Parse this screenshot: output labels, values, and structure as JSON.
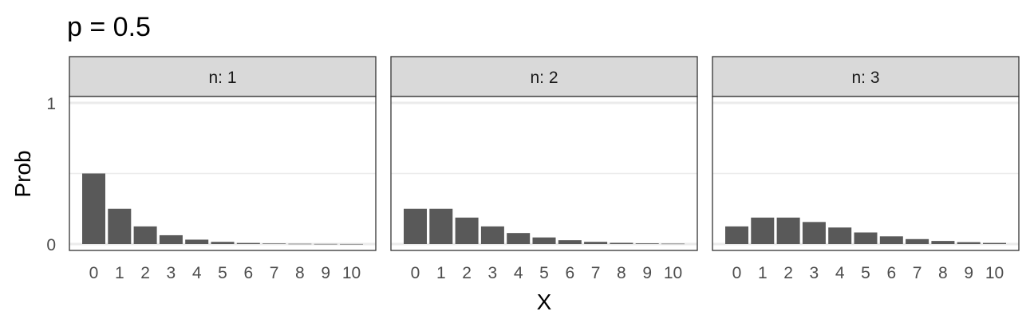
{
  "title": "p = 0.5",
  "chart_data": {
    "type": "bar",
    "title": "p = 0.5",
    "xlabel": "X",
    "ylabel": "Prob",
    "categories": [
      "0",
      "1",
      "2",
      "3",
      "4",
      "5",
      "6",
      "7",
      "8",
      "9",
      "10"
    ],
    "ylim": [
      0,
      1
    ],
    "y_ticks": [
      "0",
      "1"
    ],
    "grid": true,
    "facets": [
      {
        "label": "n: 1",
        "values": [
          0.5,
          0.25,
          0.125,
          0.0625,
          0.03125,
          0.015625,
          0.0078125,
          0.00390625,
          0.001953125,
          0.0009765625,
          0.00048828125
        ]
      },
      {
        "label": "n: 2",
        "values": [
          0.25,
          0.25,
          0.1875,
          0.125,
          0.078125,
          0.046875,
          0.02734375,
          0.015625,
          0.0087890625,
          0.0048828125,
          0.002685546875
        ]
      },
      {
        "label": "n: 3",
        "values": [
          0.125,
          0.1875,
          0.1875,
          0.15625,
          0.1171875,
          0.08203125,
          0.0546875,
          0.03515625,
          0.02197265625,
          0.013427734375,
          0.008056640625
        ]
      }
    ],
    "colors": {
      "bar": "#595959",
      "strip_fill": "#d9d9d9",
      "panel_border": "#333333",
      "grid": "#ebebeb"
    }
  }
}
